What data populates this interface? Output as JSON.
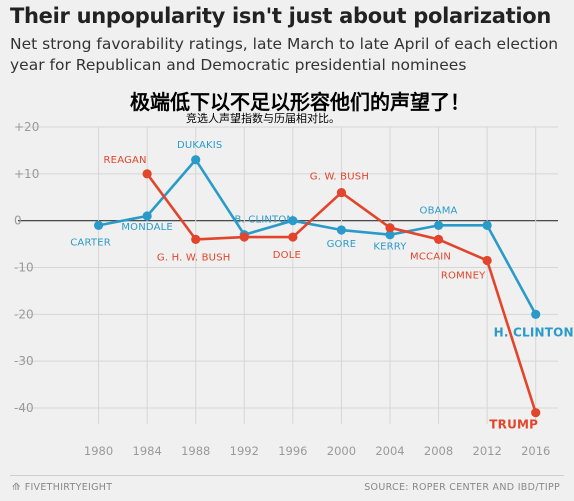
{
  "title": "Their unpopularity isn't just about polarization",
  "subtitle": "Net strong favorability ratings, late March to late April of each election year for Republican and Democratic presidential nominees",
  "overlay": {
    "headline": "极端低下以不足以形容他们的声望了！",
    "subline": "竞选人声望指数与历届相对比。"
  },
  "footer": {
    "logo": "FIVETHIRTYEIGHT",
    "source": "SOURCE: ROPER CENTER AND IBD/TIPP"
  },
  "colors": {
    "republican": "#e2452b",
    "democratic": "#2a9bc9",
    "grid": "#d6d6d6",
    "zero": "#333333",
    "tick": "#9a9a9a"
  },
  "chart_data": {
    "type": "line",
    "x": [
      1980,
      1984,
      1988,
      1992,
      1996,
      2000,
      2004,
      2008,
      2012,
      2016
    ],
    "ylim": [
      -45,
      20
    ],
    "yticks": [
      {
        "value": 20,
        "label": "+20"
      },
      {
        "value": 10,
        "label": "+10"
      },
      {
        "value": 0,
        "label": "0"
      },
      {
        "value": -10,
        "label": "-10"
      },
      {
        "value": -20,
        "label": "-20"
      },
      {
        "value": -30,
        "label": "-30"
      },
      {
        "value": -40,
        "label": "-40"
      }
    ],
    "grid": true,
    "series": [
      {
        "party": "democratic",
        "x": [
          1980,
          1984,
          1988,
          1992,
          1996,
          2000,
          2004,
          2008,
          2012,
          2016
        ],
        "values": [
          -1,
          1,
          13,
          -3,
          0,
          -2,
          -3,
          -1,
          -1,
          -20
        ],
        "labels": [
          "CARTER",
          "MONDALE",
          "DUKAKIS",
          "B. CLINTON",
          "",
          "GORE",
          "KERRY",
          "OBAMA",
          "",
          "H. CLINTON"
        ]
      },
      {
        "party": "republican",
        "x": [
          1984,
          1988,
          1992,
          1996,
          2000,
          2004,
          2008,
          2012,
          2016
        ],
        "values": [
          10,
          -4,
          -3.5,
          -3.5,
          6,
          -1.5,
          -4,
          -8.5,
          -41
        ],
        "labels": [
          "REAGAN",
          "G. H. W. BUSH",
          "",
          "DOLE",
          "G. W. BUSH",
          "",
          "MCCAIN",
          "ROMNEY",
          "TRUMP"
        ]
      }
    ]
  }
}
